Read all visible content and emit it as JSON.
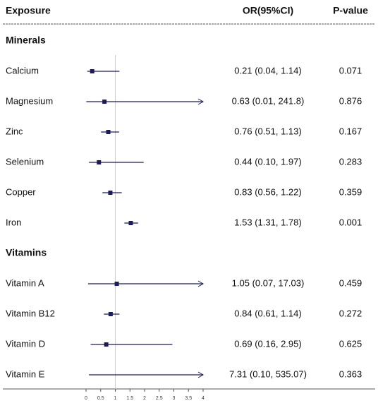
{
  "chart_data": {
    "type": "forest",
    "columns": [
      "Exposure",
      "OR(95%CI)",
      "P-value"
    ],
    "groups": [
      {
        "name": "Minerals",
        "categories": [
          "Calcium",
          "Magnesium",
          "Zinc",
          "Selenium",
          "Copper",
          "Iron"
        ],
        "values": [
          0.21,
          0.63,
          0.76,
          0.44,
          0.83,
          1.53
        ],
        "lower": [
          0.04,
          0.01,
          0.51,
          0.1,
          0.56,
          1.31
        ],
        "upper": [
          1.14,
          241.8,
          1.13,
          1.97,
          1.22,
          1.78
        ],
        "value_labels": [
          "0.21 (0.04, 1.14)",
          "0.63 (0.01, 241.8)",
          "0.76 (0.51, 1.13)",
          "0.44 (0.10, 1.97)",
          "0.83 (0.56, 1.22)",
          "1.53 (1.31, 1.78)"
        ],
        "p_values": [
          0.071,
          0.876,
          0.167,
          0.283,
          0.359,
          0.001
        ]
      },
      {
        "name": "Vitamins",
        "categories": [
          "Vitamin A",
          "Vitamin B12",
          "Vitamin D",
          "Vitamin E"
        ],
        "values": [
          1.05,
          0.84,
          0.69,
          7.31
        ],
        "lower": [
          0.07,
          0.61,
          0.16,
          0.1
        ],
        "upper": [
          17.03,
          1.14,
          2.95,
          535.07
        ],
        "value_labels": [
          "1.05 (0.07, 17.03)",
          "0.84 (0.61, 1.14)",
          "0.69 (0.16, 2.95)",
          "7.31 (0.10, 535.07)"
        ],
        "p_values": [
          0.459,
          0.272,
          0.625,
          0.363
        ]
      }
    ],
    "xlim": [
      0,
      4
    ],
    "xticks": [
      0,
      0.5,
      1,
      1.5,
      2,
      2.5,
      3,
      3.5,
      4
    ],
    "reference": 1,
    "color": "#1b1b5e"
  }
}
